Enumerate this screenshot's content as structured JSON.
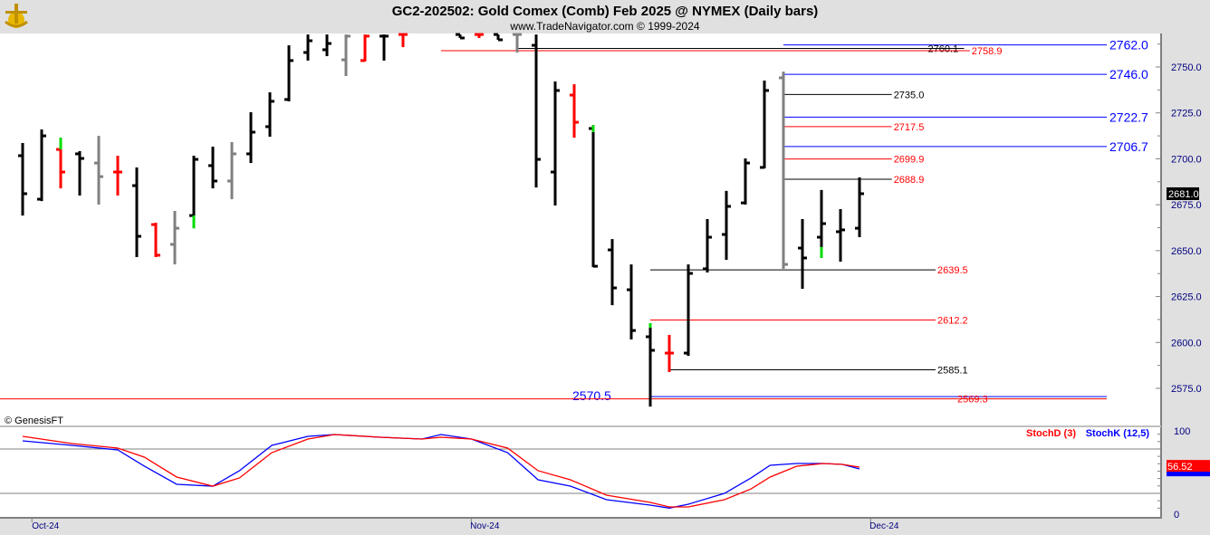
{
  "header": {
    "title": "GC2-202502:  Gold Comex (Comb) Feb 2025 @ NYMEX  (Daily bars)",
    "subtitle": "www.TradeNavigator.com © 1999-2024",
    "logo_icon": "ship-anchor-logo-icon"
  },
  "copyright": "© GenesisFT",
  "chart_data": [
    {
      "type": "ohlc",
      "title": "GC2-202502:  Gold Comex (Comb) Feb 2025 @ NYMEX  (Daily bars)",
      "ylim": [
        2562,
        2768
      ],
      "yticks": [
        "2575.0",
        "2600.0",
        "2625.0",
        "2650.0",
        "2675.0",
        "2700.0",
        "2725.0",
        "2750.0"
      ],
      "ytick_values": [
        2575,
        2600,
        2625,
        2650,
        2675,
        2700,
        2725,
        2750
      ],
      "xlabels": [
        {
          "i": 1.2,
          "text": "Oct-24"
        },
        {
          "i": 24.3,
          "text": "Nov-24"
        },
        {
          "i": 45.3,
          "text": "Dec-24"
        }
      ],
      "last_price": "2681.0",
      "colors": {
        "up": "#000000",
        "down": "#ff0000",
        "neutral": "#808080",
        "green": "#00dd00"
      },
      "bars": [
        {
          "i": 0,
          "o": 2701.7,
          "h": 2708.6,
          "l": 2669.1,
          "c": 2681.0,
          "col": "up"
        },
        {
          "i": 1,
          "o": 2678.0,
          "h": 2716.0,
          "l": 2677.0,
          "c": 2712.5,
          "col": "up"
        },
        {
          "i": 2,
          "o": 2705.1,
          "h": 2711.5,
          "l": 2683.9,
          "c": 2692.8,
          "col": "down"
        },
        {
          "i": 3,
          "o": 2702.7,
          "h": 2704.2,
          "l": 2680.0,
          "c": 2700.2,
          "col": "up"
        },
        {
          "i": 4,
          "o": 2697.7,
          "h": 2712.5,
          "l": 2675.1,
          "c": 2690.3,
          "col": "neutral"
        },
        {
          "i": 5,
          "o": 2692.8,
          "h": 2701.7,
          "l": 2680.0,
          "c": 2692.8,
          "col": "down"
        },
        {
          "i": 6,
          "o": 2685.4,
          "h": 2695.3,
          "l": 2646.5,
          "c": 2657.8,
          "col": "up"
        },
        {
          "i": 7,
          "o": 2664.2,
          "h": 2665.2,
          "l": 2646.5,
          "c": 2647.5,
          "col": "down"
        },
        {
          "i": 8,
          "o": 2653.4,
          "h": 2671.6,
          "l": 2642.5,
          "c": 2662.2,
          "col": "neutral"
        },
        {
          "i": 9,
          "o": 2669.1,
          "h": 2701.7,
          "l": 2662.2,
          "c": 2699.7,
          "col": "up"
        },
        {
          "i": 10,
          "o": 2696.3,
          "h": 2706.6,
          "l": 2683.9,
          "c": 2687.9,
          "col": "up"
        },
        {
          "i": 11,
          "o": 2687.9,
          "h": 2709.1,
          "l": 2678.0,
          "c": 2702.7,
          "col": "neutral"
        },
        {
          "i": 12,
          "o": 2702.7,
          "h": 2725.4,
          "l": 2697.7,
          "c": 2714.5,
          "col": "up"
        },
        {
          "i": 13,
          "o": 2717.5,
          "h": 2736.2,
          "l": 2712.0,
          "c": 2731.3,
          "col": "up"
        },
        {
          "i": 14,
          "o": 2732.3,
          "h": 2761.8,
          "l": 2731.3,
          "c": 2753.5,
          "col": "up"
        },
        {
          "i": 15,
          "o": 2757.9,
          "h": 2767.7,
          "l": 2753.5,
          "c": 2764.3,
          "col": "up"
        },
        {
          "i": 16,
          "o": 2759.4,
          "h": 2767.7,
          "l": 2755.9,
          "c": 2762.8,
          "col": "up"
        },
        {
          "i": 17,
          "o": 2753.9,
          "h": 2767.7,
          "l": 2745.1,
          "c": 2766.8,
          "col": "neutral"
        },
        {
          "i": 18,
          "o": 2753.5,
          "h": 2767.7,
          "l": 2753.0,
          "c": 2766.8,
          "col": "down"
        },
        {
          "i": 19,
          "o": 2766.8,
          "h": 2767.7,
          "l": 2753.5,
          "c": 2766.8,
          "col": "up"
        },
        {
          "i": 20,
          "o": 2767.7,
          "h": 2767.7,
          "l": 2760.8,
          "c": 2767.7,
          "col": "down"
        },
        {
          "i": 23,
          "o": 2767.7,
          "h": 2767.7,
          "l": 2765.8,
          "c": 2765.8,
          "col": "up"
        },
        {
          "i": 24,
          "o": 2767.7,
          "h": 2767.7,
          "l": 2765.8,
          "c": 2767.7,
          "col": "down"
        },
        {
          "i": 25,
          "o": 2767.7,
          "h": 2767.7,
          "l": 2764.8,
          "c": 2764.8,
          "col": "up"
        },
        {
          "i": 26,
          "o": 2767.7,
          "h": 2767.7,
          "l": 2757.9,
          "c": 2767.7,
          "col": "neutral"
        },
        {
          "i": 27,
          "o": 2761.8,
          "h": 2767.7,
          "l": 2684.4,
          "c": 2699.7,
          "col": "up"
        },
        {
          "i": 28,
          "o": 2692.8,
          "h": 2742.1,
          "l": 2674.6,
          "c": 2737.2,
          "col": "up"
        },
        {
          "i": 29,
          "o": 2734.7,
          "h": 2740.6,
          "l": 2711.5,
          "c": 2719.9,
          "col": "down"
        },
        {
          "i": 30,
          "o": 2716.5,
          "h": 2718.4,
          "l": 2641.0,
          "c": 2641.5,
          "col": "up"
        },
        {
          "i": 31,
          "o": 2650.4,
          "h": 2656.3,
          "l": 2620.3,
          "c": 2629.7,
          "col": "up"
        },
        {
          "i": 32,
          "o": 2628.7,
          "h": 2642.5,
          "l": 2601.6,
          "c": 2606.5,
          "col": "up"
        },
        {
          "i": 33,
          "o": 2603.1,
          "h": 2610.5,
          "l": 2565.1,
          "c": 2595.7,
          "col": "up"
        },
        {
          "i": 34,
          "o": 2594.2,
          "h": 2604.1,
          "l": 2583.9,
          "c": 2594.2,
          "col": "down"
        },
        {
          "i": 35,
          "o": 2594.2,
          "h": 2642.5,
          "l": 2592.7,
          "c": 2637.6,
          "col": "up"
        },
        {
          "i": 36,
          "o": 2640.1,
          "h": 2667.2,
          "l": 2638.1,
          "c": 2657.3,
          "col": "up"
        },
        {
          "i": 37,
          "o": 2658.8,
          "h": 2682.5,
          "l": 2645.0,
          "c": 2674.1,
          "col": "up"
        },
        {
          "i": 38,
          "o": 2676.0,
          "h": 2700.2,
          "l": 2675.1,
          "c": 2697.7,
          "col": "up"
        },
        {
          "i": 39,
          "o": 2695.3,
          "h": 2742.6,
          "l": 2694.8,
          "c": 2737.2,
          "col": "up"
        },
        {
          "i": 40,
          "o": 2744.1,
          "h": 2747.5,
          "l": 2640.1,
          "c": 2642.5,
          "col": "neutral"
        },
        {
          "i": 41,
          "o": 2651.4,
          "h": 2667.2,
          "l": 2629.2,
          "c": 2646.0,
          "col": "up"
        },
        {
          "i": 42,
          "o": 2657.3,
          "h": 2683.0,
          "l": 2646.0,
          "c": 2664.7,
          "col": "up"
        },
        {
          "i": 43,
          "o": 2660.3,
          "h": 2672.6,
          "l": 2644.0,
          "c": 2661.3,
          "col": "up"
        },
        {
          "i": 44,
          "o": 2662.2,
          "h": 2689.9,
          "l": 2657.3,
          "c": 2681.0,
          "col": "up"
        }
      ],
      "green_marks": [
        {
          "i": 2,
          "from": 2705.1,
          "to": 2711.5
        },
        {
          "i": 9,
          "from": 2662.2,
          "to": 2669.1
        },
        {
          "i": 30,
          "from": 2714.5,
          "to": 2718.4
        },
        {
          "i": 33,
          "from": 2608.0,
          "to": 2610.5
        },
        {
          "i": 42,
          "from": 2646.0,
          "to": 2652.0
        }
      ],
      "levels": [
        {
          "price": 2762.0,
          "text": "2762.0",
          "color": "#0000ff",
          "from": 40,
          "to": 57,
          "label": "big-right"
        },
        {
          "price": 2760.1,
          "text": "2760.1",
          "color": "#000000",
          "from": 26,
          "to": 49.5,
          "label": "mid"
        },
        {
          "price": 2758.9,
          "text": "2758.9",
          "color": "#ff0000",
          "from": 22,
          "to": 49.8,
          "label": "after"
        },
        {
          "price": 2746.0,
          "text": "2746.0",
          "color": "#0000ff",
          "from": 40,
          "to": 57,
          "label": "big-right"
        },
        {
          "price": 2735.0,
          "text": "2735.0",
          "color": "#000000",
          "from": 40,
          "to": 45.7,
          "label": "after"
        },
        {
          "price": 2722.7,
          "text": "2722.7",
          "color": "#0000ff",
          "from": 40,
          "to": 57,
          "label": "big-right"
        },
        {
          "price": 2717.5,
          "text": "2717.5",
          "color": "#ff0000",
          "from": 40,
          "to": 45.7,
          "label": "after"
        },
        {
          "price": 2706.7,
          "text": "2706.7",
          "color": "#0000ff",
          "from": 40,
          "to": 57,
          "label": "big-right"
        },
        {
          "price": 2699.9,
          "text": "2699.9",
          "color": "#ff0000",
          "from": 40,
          "to": 45.7,
          "label": "after"
        },
        {
          "price": 2688.9,
          "text": "2688.9",
          "color": "#ff0000",
          "from": 40,
          "to": 45.7,
          "label": "after",
          "line": "#000000"
        },
        {
          "price": 2639.5,
          "text": "2639.5",
          "color": "#ff0000",
          "from": 33,
          "to": 48,
          "label": "after",
          "line": "#000000"
        },
        {
          "price": 2612.2,
          "text": "2612.2",
          "color": "#ff0000",
          "from": 33,
          "to": 48,
          "label": "after"
        },
        {
          "price": 2585.1,
          "text": "2585.1",
          "color": "#000000",
          "from": 34,
          "to": 48,
          "label": "after"
        },
        {
          "price": 2570.5,
          "text": "2570.5",
          "color": "#0000ff",
          "from": 33,
          "to": 57,
          "label": "big-left"
        },
        {
          "price": 2569.3,
          "text": "2569.3",
          "color": "#ff0000",
          "from": -1.2,
          "to": 57,
          "label": "after-mid"
        }
      ]
    },
    {
      "type": "line",
      "title": "Stochastic",
      "ylim": [
        0,
        100
      ],
      "yticks": [
        "100",
        "0"
      ],
      "levels": [
        80,
        20
      ],
      "last_value": "56.52",
      "series": [
        {
          "name": "StochD (3)",
          "color": "#ff0000",
          "points": [
            [
              0,
              97.1
            ],
            [
              2.6,
              87.3
            ],
            [
              5,
              81.2
            ],
            [
              6.4,
              68.9
            ],
            [
              8.1,
              42.0
            ],
            [
              10,
              29.7
            ],
            [
              11.4,
              40.8
            ],
            [
              13.1,
              75.0
            ],
            [
              15,
              93.4
            ],
            [
              16.4,
              99.5
            ],
            [
              18.8,
              95.8
            ],
            [
              21,
              93.4
            ],
            [
              22,
              95.8
            ],
            [
              23.6,
              93.4
            ],
            [
              25.5,
              81.2
            ],
            [
              27.1,
              50.6
            ],
            [
              28.8,
              38.3
            ],
            [
              30.7,
              17.5
            ],
            [
              33,
              7.7
            ],
            [
              34,
              1.6
            ],
            [
              35,
              1.6
            ],
            [
              36.9,
              11.4
            ],
            [
              38.3,
              26.0
            ],
            [
              39.3,
              42.0
            ],
            [
              40.7,
              56.7
            ],
            [
              42.1,
              60.3
            ],
            [
              43.1,
              59.1
            ],
            [
              44,
              55.4
            ]
          ]
        },
        {
          "name": "StochK (12,5)",
          "color": "#0000ff",
          "points": [
            [
              0,
              90.9
            ],
            [
              2.6,
              84.8
            ],
            [
              5,
              78.7
            ],
            [
              6.4,
              56.7
            ],
            [
              8.1,
              32.2
            ],
            [
              10,
              29.7
            ],
            [
              11.4,
              50.6
            ],
            [
              13.1,
              84.8
            ],
            [
              15,
              97.1
            ],
            [
              16.4,
              99.5
            ],
            [
              18.8,
              95.8
            ],
            [
              21,
              93.4
            ],
            [
              22,
              99.5
            ],
            [
              23.6,
              93.4
            ],
            [
              25.5,
              75.0
            ],
            [
              27.1,
              38.3
            ],
            [
              28.8,
              29.7
            ],
            [
              30.7,
              11.4
            ],
            [
              33,
              4.0
            ],
            [
              34,
              0
            ],
            [
              35,
              5.3
            ],
            [
              36.9,
              19.9
            ],
            [
              38.3,
              40.8
            ],
            [
              39.3,
              57.9
            ],
            [
              40.7,
              60.3
            ],
            [
              42.1,
              60.3
            ],
            [
              43.1,
              59.1
            ],
            [
              44,
              53.0
            ]
          ]
        }
      ]
    }
  ]
}
